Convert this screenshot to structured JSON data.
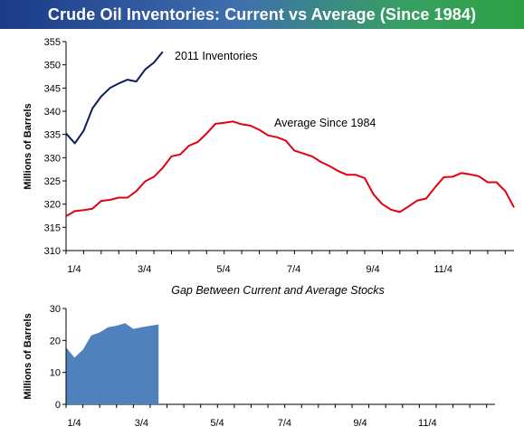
{
  "title": "Crude Oil Inventories: Current vs Average (Since 1984)",
  "chart_data": [
    {
      "type": "line",
      "ylabel": "Millions of Barrels",
      "ylim": [
        310,
        355
      ],
      "yticks": [
        310,
        315,
        320,
        325,
        330,
        335,
        340,
        345,
        350,
        355
      ],
      "xlim": [
        0,
        51
      ],
      "xticks": [
        {
          "label": "1/4",
          "x": 0
        },
        {
          "label": "3/4",
          "x": 8
        },
        {
          "label": "5/4",
          "x": 17
        },
        {
          "label": "7/4",
          "x": 25
        },
        {
          "label": "9/4",
          "x": 34
        },
        {
          "label": "11/4",
          "x": 42
        }
      ],
      "grid": false,
      "series": [
        {
          "name": "2011 Inventories",
          "color": "#0b1f5c",
          "values": [
            335.2,
            333.1,
            335.8,
            340.6,
            343.2,
            345.0,
            346.0,
            346.8,
            346.4,
            349.0,
            350.5,
            352.8
          ]
        },
        {
          "name": "Average Since 1984",
          "color": "#e3000f",
          "values": [
            317.4,
            318.5,
            318.7,
            319.0,
            320.7,
            320.9,
            321.4,
            321.4,
            322.8,
            324.9,
            325.9,
            327.8,
            330.3,
            330.7,
            332.6,
            333.4,
            335.2,
            337.3,
            337.5,
            337.8,
            337.2,
            336.9,
            336.0,
            334.8,
            334.4,
            333.7,
            331.5,
            330.9,
            330.3,
            329.1,
            328.2,
            327.1,
            326.3,
            326.3,
            325.6,
            322.1,
            320.0,
            318.8,
            318.3,
            319.5,
            320.8,
            321.2,
            323.6,
            325.8,
            325.9,
            326.7,
            326.4,
            326.0,
            324.7,
            324.7,
            322.8,
            319.3
          ]
        }
      ]
    },
    {
      "type": "area",
      "title": "Gap Between Current and Average Stocks",
      "ylabel": "Millions of Barrels",
      "ylim": [
        0,
        30
      ],
      "yticks": [
        0,
        10,
        20,
        30
      ],
      "xlim": [
        0,
        51
      ],
      "xticks": [
        {
          "label": "1/4",
          "x": 0
        },
        {
          "label": "3/4",
          "x": 8
        },
        {
          "label": "5/4",
          "x": 17
        },
        {
          "label": "7/4",
          "x": 25
        },
        {
          "label": "9/4",
          "x": 34
        },
        {
          "label": "11/4",
          "x": 42
        }
      ],
      "series": [
        {
          "name": "Gap",
          "color": "#4f81bd",
          "values": [
            17.8,
            14.6,
            17.1,
            21.6,
            22.5,
            24.1,
            24.6,
            25.4,
            23.6,
            24.1,
            24.6,
            25.0
          ]
        }
      ]
    }
  ]
}
